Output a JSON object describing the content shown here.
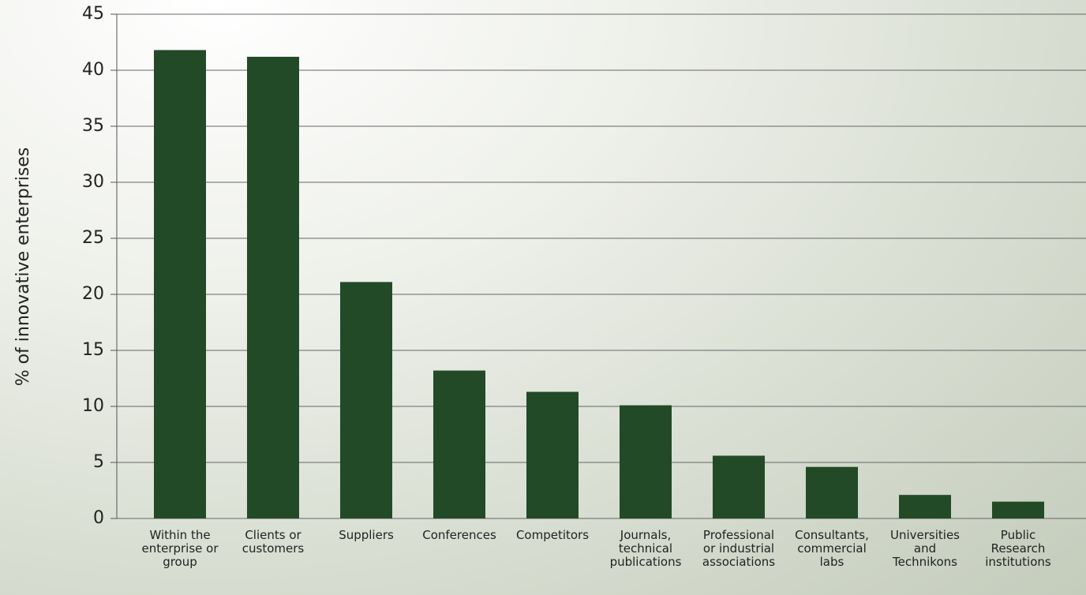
{
  "chart_data": {
    "type": "bar",
    "y_label": "% of innovative enterprises",
    "categories": [
      "Within the enterprise or group",
      "Clients or customers",
      "Suppliers",
      "Conferences",
      "Competitors",
      "Journals, technical publications",
      "Professional or industrial associations",
      "Consultants, commercial labs",
      "Universities and Technikons",
      "Public Research institutions"
    ],
    "values": [
      41.8,
      41.2,
      21.1,
      13.2,
      11.3,
      10.1,
      5.6,
      4.6,
      2.1,
      1.5
    ],
    "color": "#224a26",
    "ylim": [
      0,
      45
    ],
    "yticks": [
      0,
      5,
      10,
      15,
      20,
      25,
      30,
      35,
      40,
      45
    ],
    "grid": true
  }
}
